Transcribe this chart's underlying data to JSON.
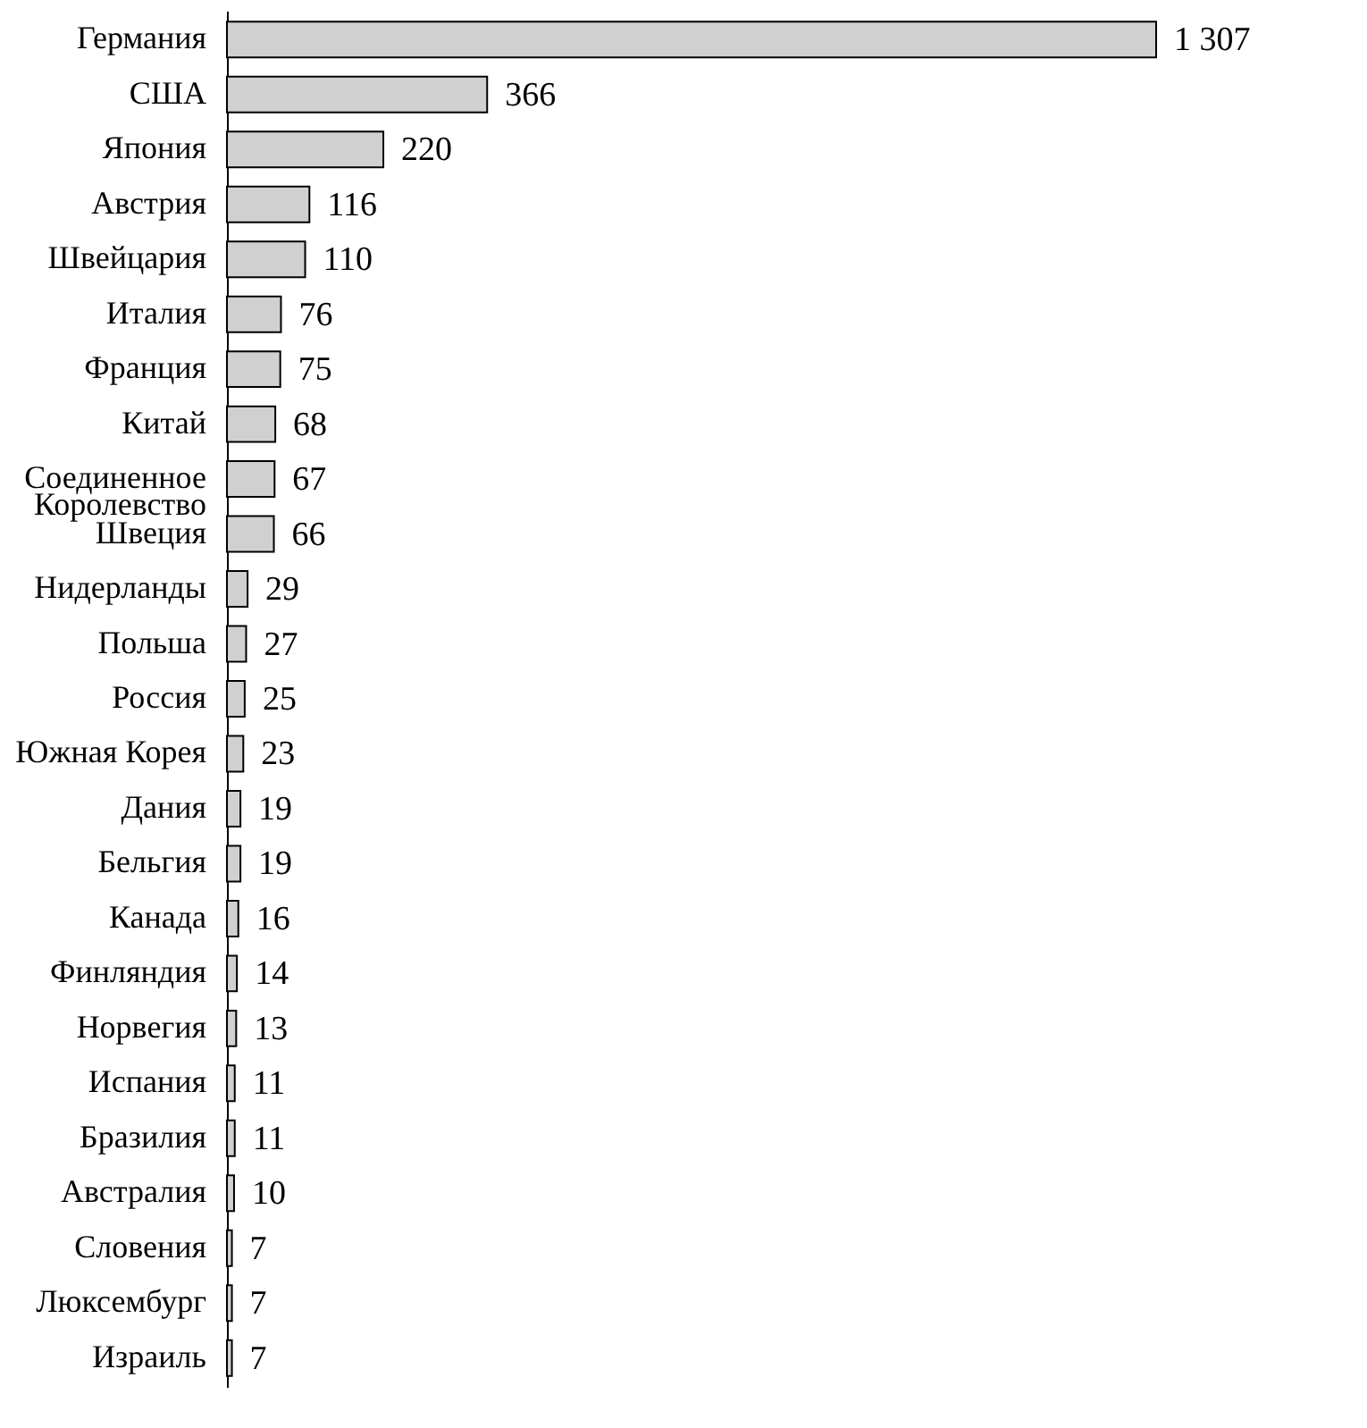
{
  "chart_data": {
    "type": "bar",
    "orientation": "horizontal",
    "categories": [
      "Германия",
      "США",
      "Япония",
      "Австрия",
      "Швейцария",
      "Италия",
      "Франция",
      "Китай",
      "Соединенное Королевство",
      "Швеция",
      "Нидерланды",
      "Польша",
      "Россия",
      "Южная Корея",
      "Дания",
      "Бельгия",
      "Канада",
      "Финляндия",
      "Норвегия",
      "Испания",
      "Бразилия",
      "Австралия",
      "Словения",
      "Люксембург",
      "Израиль"
    ],
    "values": [
      1307,
      366,
      220,
      116,
      110,
      76,
      75,
      68,
      67,
      66,
      29,
      27,
      25,
      23,
      19,
      19,
      16,
      14,
      13,
      11,
      11,
      10,
      7,
      7,
      7
    ],
    "value_labels": [
      "1 307",
      "366",
      "220",
      "116",
      "110",
      "76",
      "75",
      "68",
      "67",
      "66",
      "29",
      "27",
      "25",
      "23",
      "19",
      "19",
      "16",
      "14",
      "13",
      "11",
      "11",
      "10",
      "7",
      "7",
      "7"
    ],
    "color": "#d0d0d0"
  }
}
